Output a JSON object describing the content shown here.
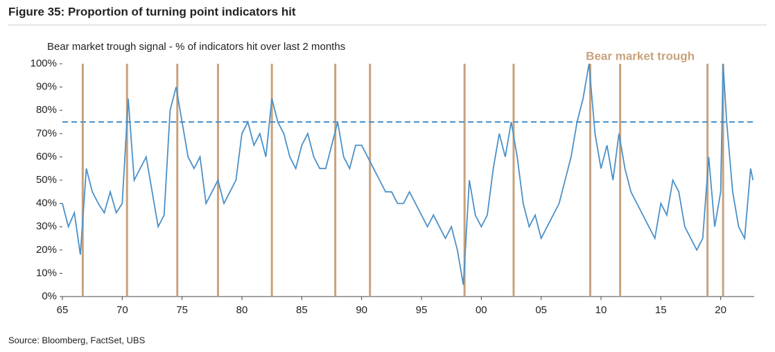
{
  "chart_data": {
    "type": "line",
    "title": "Figure 35: Proportion of turning point indicators hit",
    "subtitle": "Bear market trough signal - % of indicators hit over last 2 months",
    "source": "Source: Bloomberg, FactSet, UBS",
    "x": [
      1965.0,
      1965.5,
      1966.0,
      1966.5,
      1967.0,
      1967.5,
      1968.0,
      1968.5,
      1969.0,
      1969.5,
      1970.0,
      1970.5,
      1971.0,
      1971.5,
      1972.0,
      1972.5,
      1973.0,
      1973.5,
      1974.0,
      1974.5,
      1975.0,
      1975.5,
      1976.0,
      1976.5,
      1977.0,
      1977.5,
      1978.0,
      1978.5,
      1979.0,
      1979.5,
      1980.0,
      1980.5,
      1981.0,
      1981.5,
      1982.0,
      1982.5,
      1983.0,
      1983.5,
      1984.0,
      1984.5,
      1985.0,
      1985.5,
      1986.0,
      1986.5,
      1987.0,
      1987.5,
      1988.0,
      1988.5,
      1989.0,
      1989.5,
      1990.0,
      1990.5,
      1991.0,
      1991.5,
      1992.0,
      1992.5,
      1993.0,
      1993.5,
      1994.0,
      1994.5,
      1995.0,
      1995.5,
      1996.0,
      1996.5,
      1997.0,
      1997.5,
      1998.0,
      1998.5,
      1999.0,
      1999.5,
      2000.0,
      2000.5,
      2001.0,
      2001.5,
      2002.0,
      2002.5,
      2003.0,
      2003.5,
      2004.0,
      2004.5,
      2005.0,
      2005.5,
      2006.0,
      2006.5,
      2007.0,
      2007.5,
      2008.0,
      2008.5,
      2009.0,
      2009.5,
      2010.0,
      2010.5,
      2011.0,
      2011.5,
      2012.0,
      2012.5,
      2013.0,
      2013.5,
      2014.0,
      2014.5,
      2015.0,
      2015.5,
      2016.0,
      2016.5,
      2017.0,
      2017.5,
      2018.0,
      2018.5,
      2019.0,
      2019.5,
      2020.0,
      2020.2,
      2020.5,
      2021.0,
      2021.5,
      2022.0,
      2022.5,
      2022.7
    ],
    "series": [
      {
        "name": "Bear market trough signal",
        "color": "#4a90c8",
        "values": [
          40,
          30,
          36,
          18,
          55,
          45,
          40,
          36,
          45,
          36,
          40,
          85,
          50,
          55,
          60,
          45,
          30,
          35,
          80,
          90,
          75,
          60,
          55,
          60,
          40,
          45,
          50,
          40,
          45,
          50,
          70,
          75,
          65,
          70,
          60,
          85,
          75,
          70,
          60,
          55,
          65,
          70,
          60,
          55,
          55,
          65,
          75,
          60,
          55,
          65,
          65,
          60,
          55,
          50,
          45,
          45,
          40,
          40,
          45,
          40,
          35,
          30,
          35,
          30,
          25,
          30,
          20,
          5,
          50,
          35,
          30,
          35,
          55,
          70,
          60,
          75,
          60,
          40,
          30,
          35,
          25,
          30,
          35,
          40,
          50,
          60,
          75,
          85,
          100,
          70,
          55,
          65,
          50,
          70,
          55,
          45,
          40,
          35,
          30,
          25,
          40,
          35,
          50,
          45,
          30,
          25,
          20,
          25,
          60,
          30,
          45,
          100,
          75,
          45,
          30,
          25,
          55,
          50
        ]
      }
    ],
    "threshold": 75,
    "threshold_color": "#4a90c8",
    "trough_label": "Bear market trough",
    "trough_color": "#c8a27c",
    "troughs": [
      1966.7,
      1970.4,
      1974.6,
      1978.0,
      1982.5,
      1987.8,
      1990.7,
      1998.6,
      2002.7,
      2009.1,
      2011.6,
      2018.9,
      2020.2
    ],
    "xlim": [
      1965,
      2022.8
    ],
    "xticks": [
      {
        "value": 1965,
        "label": "65"
      },
      {
        "value": 1970,
        "label": "70"
      },
      {
        "value": 1975,
        "label": "75"
      },
      {
        "value": 1980,
        "label": "80"
      },
      {
        "value": 1985,
        "label": "85"
      },
      {
        "value": 1990,
        "label": "90"
      },
      {
        "value": 1995,
        "label": "95"
      },
      {
        "value": 2000,
        "label": "00"
      },
      {
        "value": 2005,
        "label": "05"
      },
      {
        "value": 2010,
        "label": "10"
      },
      {
        "value": 2015,
        "label": "15"
      },
      {
        "value": 2020,
        "label": "20"
      }
    ],
    "ylim": [
      0,
      100
    ],
    "yticks": [
      {
        "value": 0,
        "label": "0%"
      },
      {
        "value": 10,
        "label": "10%"
      },
      {
        "value": 20,
        "label": "20%"
      },
      {
        "value": 30,
        "label": "30%"
      },
      {
        "value": 40,
        "label": "40%"
      },
      {
        "value": 50,
        "label": "50%"
      },
      {
        "value": 60,
        "label": "60%"
      },
      {
        "value": 70,
        "label": "70%"
      },
      {
        "value": 80,
        "label": "80%"
      },
      {
        "value": 90,
        "label": "90%"
      },
      {
        "value": 100,
        "label": "100%"
      }
    ]
  }
}
